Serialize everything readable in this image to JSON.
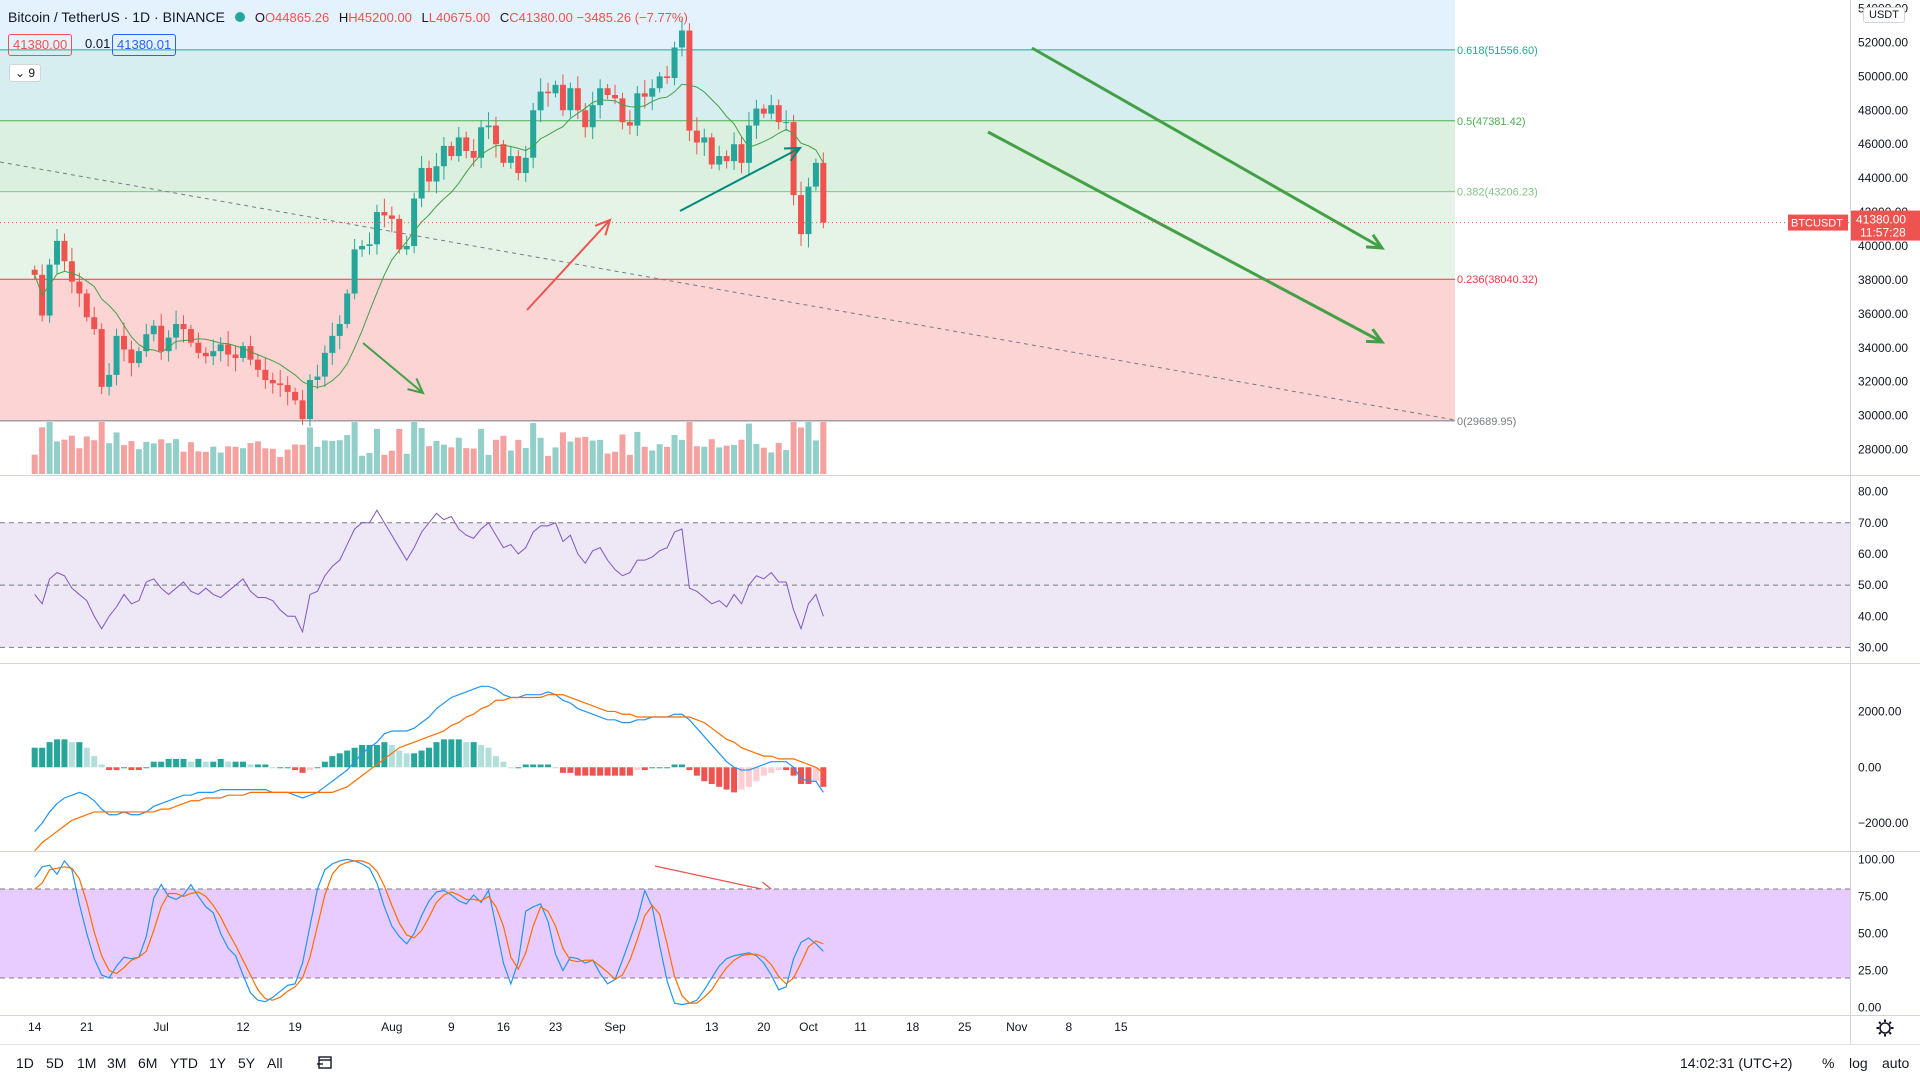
{
  "header": {
    "symbol": "Bitcoin / TetherUS · 1D · BINANCE",
    "open": "O44865.26",
    "high": "H45200.00",
    "low": "L40675.00",
    "close": "C41380.00",
    "change": "−3485.26 (−7.77%)",
    "bid": "41380.00",
    "spread": "0.01",
    "ask": "41380.01",
    "indicator_toggle": "⌄ 9",
    "currency": "USDT"
  },
  "colors": {
    "up": "#26a69a",
    "down": "#ef5350",
    "upVol": "#92cfc8",
    "downVol": "#f5a1a0",
    "trend": "#43a047",
    "rsi": "#7e57c2",
    "macd": "#2196f3",
    "signal": "#ff6d00"
  },
  "chart_data": [
    {
      "type": "candlestick",
      "title": "Bitcoin / TetherUS · 1D · BINANCE",
      "ylim": [
        26500,
        54500
      ],
      "y_ticks": [
        54000,
        52000,
        50000,
        48000,
        46000,
        44000,
        42000,
        40000,
        38000,
        36000,
        34000,
        32000,
        30000,
        28000
      ],
      "y_tick_labels": [
        "54000.00",
        "52000.00",
        "50000.00",
        "48000.00",
        "46000.00",
        "44000.00",
        "42000.00",
        "40000.00",
        "38000.00",
        "36000.00",
        "34000.00",
        "32000.00",
        "30000.00",
        "28000.00"
      ],
      "x_tick_labels": [
        "14",
        "21",
        "Jul",
        "12",
        "19",
        "Aug",
        "9",
        "16",
        "23",
        "Sep",
        "13",
        "20",
        "Oct",
        "11",
        "18",
        "25",
        "Nov",
        "8",
        "15"
      ],
      "x_tick_index": [
        0,
        7,
        17,
        28,
        35,
        48,
        56,
        63,
        70,
        78,
        91,
        98,
        104,
        111,
        118,
        125,
        132,
        139,
        146
      ],
      "last_price": 41380.0,
      "last_price_label": "41380.00",
      "countdown": "11:57:28",
      "symbol_tag": "BTCUSDT",
      "fib_levels": [
        {
          "level": 51556.6,
          "label": "0.618(51556.60)",
          "color": "#26a69a"
        },
        {
          "level": 47381.42,
          "label": "0.5(47381.42)",
          "color": "#4caf50"
        },
        {
          "level": 43206.23,
          "label": "0.382(43206.23)",
          "color": "#81c784"
        },
        {
          "level": 38040.32,
          "label": "0.236(38040.32)",
          "color": "#f23645"
        },
        {
          "level": 29689.95,
          "label": "0(29689.95)",
          "color": "#787b86"
        }
      ],
      "closes": [
        38300,
        35900,
        38900,
        40300,
        39100,
        37900,
        37200,
        35800,
        35100,
        31700,
        32400,
        34700,
        33900,
        33100,
        33800,
        34800,
        35300,
        33800,
        34600,
        35400,
        35100,
        34300,
        33700,
        33500,
        33800,
        34200,
        33600,
        33400,
        34100,
        33300,
        32700,
        32100,
        31900,
        31800,
        31400,
        30900,
        29800,
        32100,
        32300,
        33700,
        34700,
        35400,
        37200,
        39800,
        40000,
        40100,
        42000,
        41800,
        41600,
        39800,
        40000,
        42800,
        44600,
        43800,
        44700,
        45900,
        45300,
        46400,
        45600,
        45200,
        47000,
        47100,
        46000,
        44900,
        45300,
        44300,
        45200,
        48000,
        49100,
        49000,
        49500,
        48000,
        49300,
        48000,
        47000,
        48300,
        49300,
        48900,
        48700,
        47300,
        47100,
        49000,
        48800,
        49300,
        50000,
        49900,
        51700,
        52700,
        46800,
        46100,
        46400,
        44800,
        45300,
        45000,
        46000,
        44900,
        47100,
        48100,
        47800,
        48300,
        47300,
        47300,
        43000,
        40700,
        43500,
        44900,
        41380
      ],
      "volume_ticks": [
        "#ef5350"
      ],
      "rsi": {
        "ylim": [
          25,
          85
        ],
        "ticks": [
          80,
          70,
          60,
          50,
          40,
          30
        ],
        "tick_labels": [
          "80.00",
          "70.00",
          "60.00",
          "50.00",
          "40.00",
          "30.00"
        ],
        "band": [
          30,
          70
        ],
        "mid": 50,
        "values": [
          47,
          44,
          52,
          54,
          53,
          49,
          47,
          45,
          40,
          36,
          40,
          43,
          47,
          44,
          45,
          51,
          52,
          49,
          47,
          49,
          51,
          48,
          47,
          49,
          47,
          46,
          48,
          50,
          52,
          48,
          46,
          46,
          45,
          42,
          40,
          40,
          35,
          47,
          48,
          53,
          56,
          58,
          63,
          68,
          70,
          70,
          74,
          70,
          66,
          62,
          58,
          62,
          67,
          70,
          73,
          71,
          72,
          68,
          66,
          65,
          68,
          70,
          66,
          62,
          63,
          60,
          62,
          67,
          69,
          69,
          70,
          64,
          66,
          60,
          57,
          61,
          62,
          58,
          55,
          53,
          54,
          58,
          58,
          59,
          61,
          62,
          67,
          68,
          49,
          48,
          46,
          44,
          45,
          43,
          47,
          44,
          50,
          53,
          52,
          54,
          51,
          51,
          42,
          36,
          44,
          47,
          40
        ]
      },
      "macd": {
        "ylim": [
          -3000,
          3700
        ],
        "ticks": [
          2000,
          0,
          -2000
        ],
        "tick_labels": [
          "2000.00",
          "0.00",
          "−2000.00"
        ],
        "macd": [
          -2300,
          -2000,
          -1600,
          -1300,
          -1100,
          -1000,
          -900,
          -1000,
          -1200,
          -1500,
          -1700,
          -1700,
          -1600,
          -1700,
          -1700,
          -1600,
          -1400,
          -1300,
          -1200,
          -1100,
          -1000,
          -1000,
          -900,
          -900,
          -900,
          -800,
          -800,
          -800,
          -800,
          -800,
          -800,
          -800,
          -900,
          -900,
          -900,
          -1000,
          -1100,
          -1000,
          -900,
          -700,
          -500,
          -300,
          -100,
          200,
          500,
          700,
          900,
          1200,
          1300,
          1300,
          1300,
          1400,
          1600,
          1800,
          2100,
          2300,
          2500,
          2600,
          2700,
          2800,
          2900,
          2900,
          2800,
          2600,
          2500,
          2500,
          2600,
          2600,
          2600,
          2700,
          2600,
          2400,
          2300,
          2100,
          2000,
          1900,
          1800,
          1700,
          1700,
          1600,
          1600,
          1700,
          1700,
          1800,
          1800,
          1800,
          1900,
          1900,
          1700,
          1400,
          1100,
          800,
          500,
          200,
          0,
          -100,
          -100,
          0,
          100,
          200,
          200,
          200,
          0,
          -400,
          -500,
          -500,
          -900
        ],
        "signal": [
          -3000,
          -2700,
          -2500,
          -2300,
          -2100,
          -1900,
          -1800,
          -1700,
          -1600,
          -1600,
          -1600,
          -1600,
          -1600,
          -1600,
          -1600,
          -1600,
          -1600,
          -1500,
          -1500,
          -1400,
          -1300,
          -1200,
          -1200,
          -1100,
          -1100,
          -1100,
          -1000,
          -1000,
          -1000,
          -900,
          -900,
          -900,
          -900,
          -900,
          -900,
          -900,
          -900,
          -900,
          -900,
          -900,
          -900,
          -800,
          -700,
          -500,
          -300,
          -100,
          100,
          300,
          500,
          700,
          800,
          900,
          1000,
          1100,
          1200,
          1300,
          1500,
          1600,
          1800,
          1900,
          2100,
          2200,
          2400,
          2400,
          2500,
          2500,
          2500,
          2500,
          2500,
          2600,
          2600,
          2600,
          2500,
          2400,
          2300,
          2200,
          2100,
          2000,
          2000,
          1900,
          1900,
          1800,
          1800,
          1800,
          1800,
          1800,
          1800,
          1800,
          1800,
          1700,
          1600,
          1400,
          1200,
          1000,
          900,
          700,
          600,
          500,
          400,
          400,
          300,
          300,
          300,
          200,
          100,
          0,
          -200
        ]
      },
      "stoch": {
        "ylim": [
          -5,
          105
        ],
        "ticks": [
          100,
          75,
          50,
          25,
          0
        ],
        "tick_labels": [
          "100.00",
          "75.00",
          "50.00",
          "25.00",
          "0.00"
        ],
        "band": [
          20,
          80
        ],
        "k": [
          88,
          95,
          96,
          90,
          99,
          93,
          70,
          50,
          33,
          22,
          20,
          28,
          34,
          33,
          34,
          48,
          74,
          83,
          75,
          73,
          76,
          83,
          75,
          68,
          64,
          50,
          40,
          35,
          22,
          10,
          5,
          4,
          7,
          11,
          15,
          16,
          30,
          55,
          80,
          93,
          97,
          99,
          100,
          99,
          97,
          94,
          84,
          68,
          55,
          48,
          43,
          50,
          62,
          72,
          78,
          79,
          76,
          72,
          70,
          76,
          71,
          79,
          55,
          30,
          16,
          31,
          65,
          68,
          70,
          58,
          36,
          25,
          34,
          33,
          30,
          32,
          23,
          16,
          19,
          32,
          46,
          60,
          79,
          68,
          42,
          18,
          3,
          2,
          3,
          5,
          12,
          20,
          28,
          33,
          35,
          36,
          37,
          35,
          30,
          22,
          12,
          14,
          33,
          44,
          47,
          43,
          38
        ],
        "d": [
          80,
          84,
          93,
          94,
          95,
          94,
          87,
          71,
          51,
          35,
          25,
          23,
          27,
          32,
          34,
          38,
          52,
          68,
          77,
          77,
          75,
          77,
          78,
          75,
          69,
          61,
          51,
          42,
          32,
          22,
          12,
          6,
          5,
          7,
          11,
          14,
          20,
          34,
          55,
          76,
          90,
          96,
          98,
          99,
          99,
          97,
          92,
          82,
          69,
          57,
          49,
          47,
          52,
          61,
          71,
          76,
          78,
          76,
          73,
          73,
          72,
          75,
          68,
          55,
          34,
          26,
          37,
          55,
          68,
          65,
          55,
          40,
          32,
          31,
          32,
          32,
          28,
          24,
          19,
          22,
          32,
          46,
          62,
          69,
          63,
          43,
          21,
          8,
          3,
          3,
          7,
          12,
          20,
          27,
          32,
          35,
          36,
          36,
          34,
          29,
          21,
          16,
          20,
          30,
          41,
          45,
          43
        ]
      }
    }
  ],
  "bottom": {
    "ranges": [
      "1D",
      "5D",
      "1M",
      "3M",
      "6M",
      "YTD",
      "1Y",
      "5Y",
      "All"
    ],
    "time": "14:02:31 (UTC+2)",
    "pct": "%",
    "log": "log",
    "auto": "auto"
  }
}
